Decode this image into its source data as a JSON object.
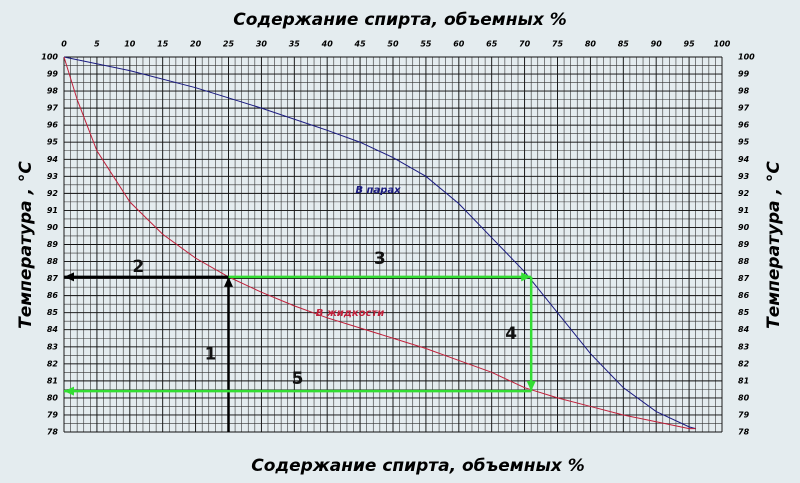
{
  "chart_data": {
    "type": "line",
    "title": "Содержание спирта, объемных %",
    "xlabel": "Содержание спирта, объемных %",
    "ylabel": "Температура , °C",
    "y2label": "Температура , °C",
    "xlim": [
      0,
      100
    ],
    "xticks": [
      0,
      5,
      10,
      15,
      20,
      25,
      30,
      35,
      40,
      45,
      50,
      55,
      60,
      65,
      70,
      75,
      80,
      85,
      90,
      95,
      100
    ],
    "ylim": [
      78,
      100
    ],
    "yticks": [
      78,
      79,
      80,
      81,
      82,
      83,
      84,
      85,
      86,
      87,
      88,
      89,
      90,
      91,
      92,
      93,
      94,
      95,
      96,
      97,
      98,
      99,
      100
    ],
    "y2lim": [
      78,
      100
    ],
    "y2ticks": [
      78,
      79,
      80,
      81,
      82,
      83,
      84,
      85,
      86,
      87,
      88,
      89,
      90,
      91,
      92,
      93,
      94,
      95,
      96,
      97,
      98,
      99,
      100
    ],
    "grid": true,
    "xgrid_step": 1,
    "ygrid_step": 0.5,
    "series": [
      {
        "name": "В парах",
        "color": "#1a1a80",
        "x": [
          0,
          10,
          20,
          30,
          40,
          45,
          50,
          55,
          60,
          65,
          70,
          75,
          80,
          85,
          90,
          95,
          96
        ],
        "values": [
          100,
          99.2,
          98.2,
          97.0,
          95.7,
          95.0,
          94.1,
          93.0,
          91.4,
          89.4,
          87.4,
          85.0,
          82.6,
          80.6,
          79.2,
          78.3,
          78.2
        ]
      },
      {
        "name": "В жидкости",
        "color": "#c0203a",
        "x": [
          0,
          2,
          5,
          10,
          15,
          20,
          25,
          30,
          35,
          40,
          45,
          50,
          55,
          60,
          65,
          70,
          75,
          80,
          85,
          90,
          95,
          96
        ],
        "values": [
          100,
          97.5,
          94.5,
          91.5,
          89.6,
          88.2,
          87.1,
          86.2,
          85.4,
          84.7,
          84.1,
          83.5,
          82.9,
          82.2,
          81.5,
          80.6,
          80.0,
          79.5,
          79.0,
          78.6,
          78.2,
          78.2
        ]
      }
    ],
    "annotations": [
      {
        "label": "1",
        "color": "#000000",
        "from": [
          25,
          78
        ],
        "to": [
          25,
          87.1
        ]
      },
      {
        "label": "2",
        "color": "#000000",
        "from": [
          25,
          87.1
        ],
        "to": [
          0,
          87.1
        ]
      },
      {
        "label": "3",
        "color": "#33dd33",
        "from": [
          25,
          87.1
        ],
        "to": [
          71,
          87.1
        ]
      },
      {
        "label": "4",
        "color": "#33dd33",
        "from": [
          71,
          87.1
        ],
        "to": [
          71,
          80.4
        ]
      },
      {
        "label": "5",
        "color": "#33dd33",
        "from": [
          71,
          80.4
        ],
        "to": [
          0,
          80.4
        ]
      }
    ]
  }
}
